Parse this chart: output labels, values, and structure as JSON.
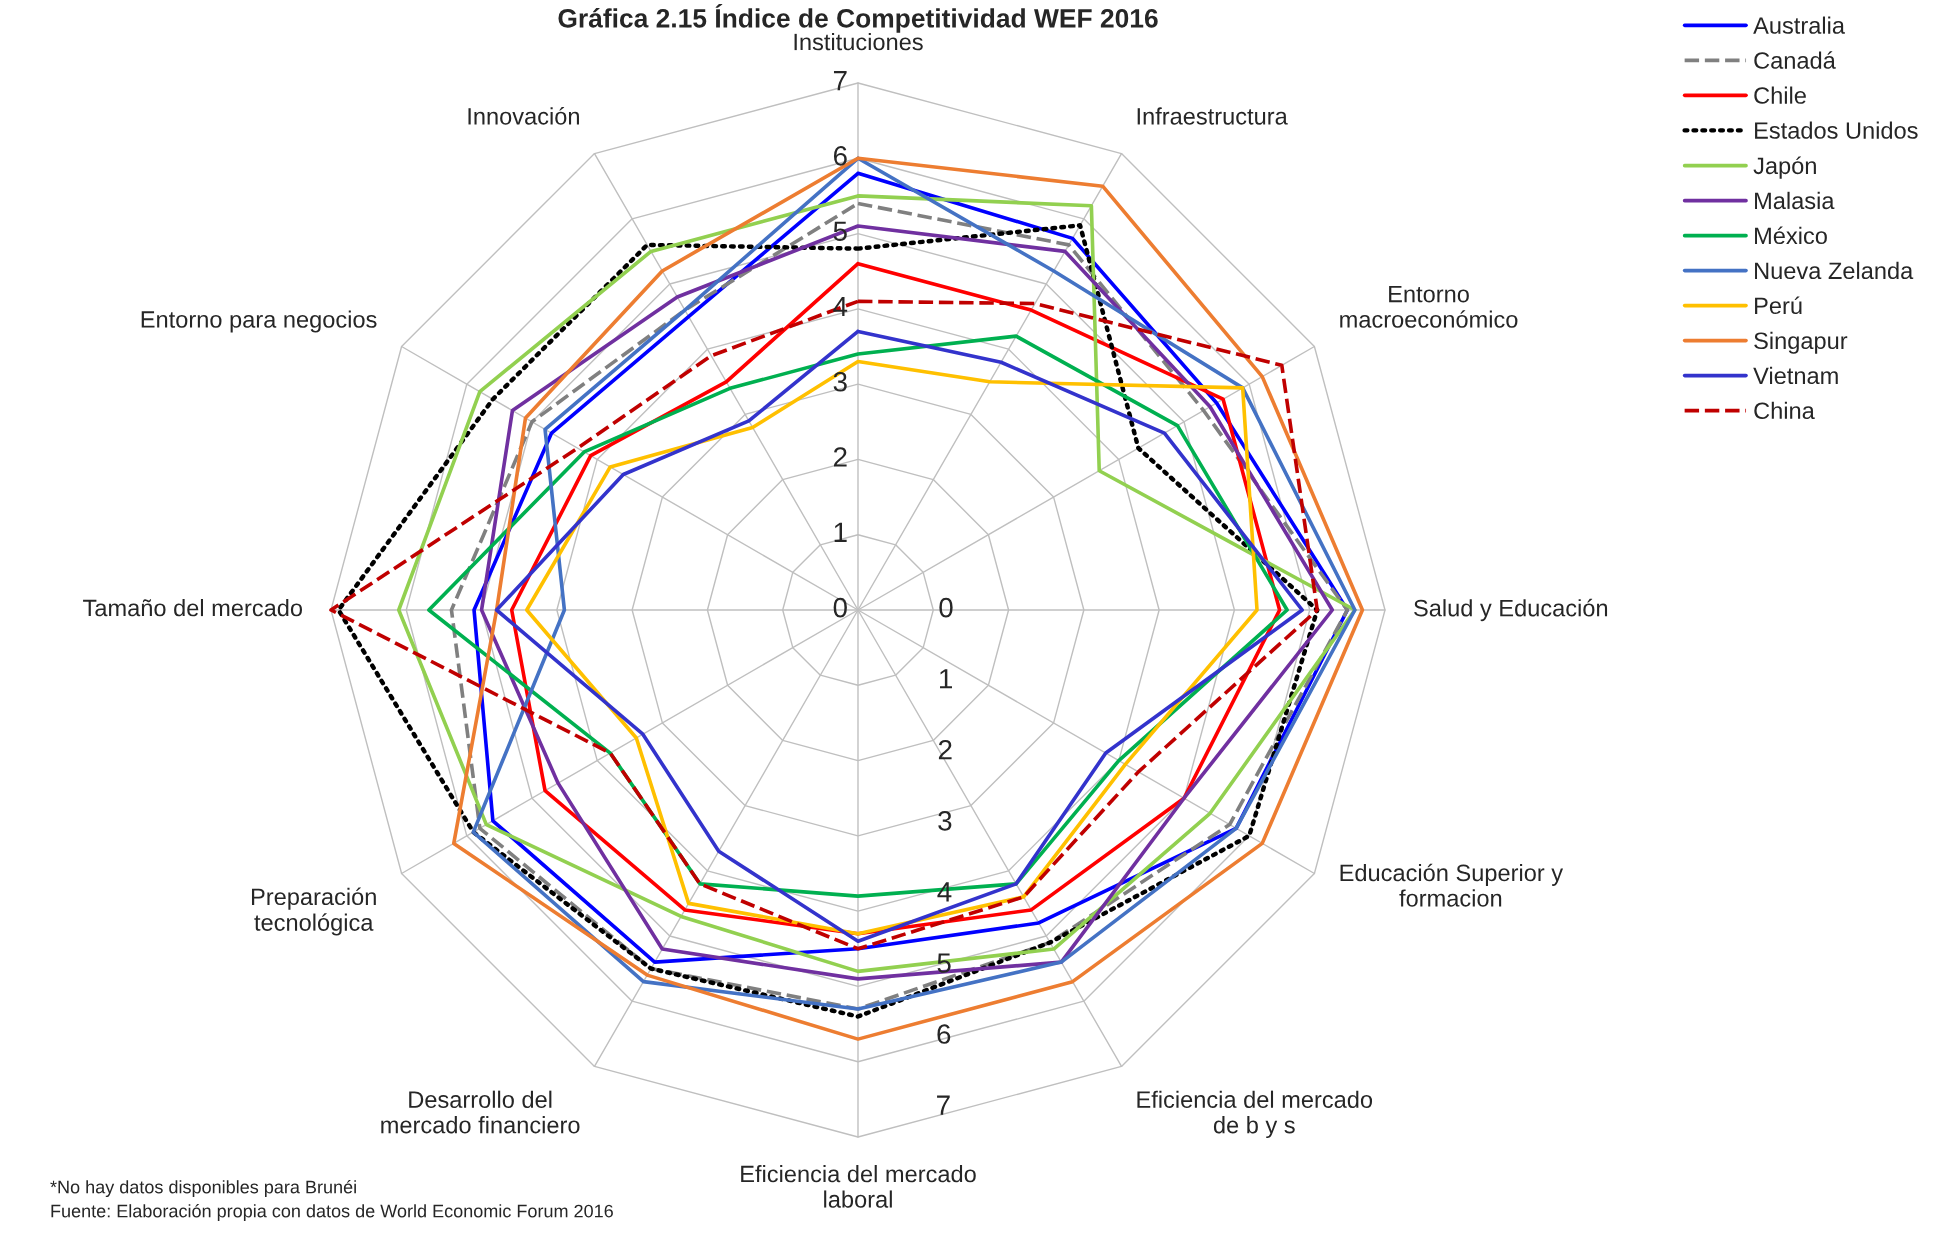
{
  "chart_data": {
    "type": "radar",
    "title": "Gráfica 2.15 Índice de Competitividad WEF 2016",
    "categories": [
      "Instituciones",
      "Infraestructura",
      "Entorno\nmacroeconómico",
      "Salud y Educación",
      "Educación Superior y\nformacion",
      "Eficiencia del mercado\nde b y s",
      "Eficiencia del mercado\nlaboral",
      "Desarrollo del\nmercado financiero",
      "Preparación\ntecnológica",
      "Tamaño del mercado",
      "Entorno para negocios",
      "Innovación"
    ],
    "series": [
      {
        "name": "Australia",
        "color": "#0000ff",
        "line_style": "solid",
        "values": [
          5.8,
          5.7,
          5.5,
          6.5,
          5.8,
          4.8,
          4.5,
          5.4,
          5.6,
          5.1,
          4.7,
          4.5
        ]
      },
      {
        "name": "Canadá",
        "color": "#808080",
        "line_style": "dashed",
        "values": [
          5.4,
          5.6,
          5.3,
          6.5,
          5.7,
          5.1,
          5.3,
          5.5,
          5.8,
          5.4,
          5.0,
          4.6
        ]
      },
      {
        "name": "Chile",
        "color": "#ff0000",
        "line_style": "solid",
        "values": [
          4.6,
          4.6,
          5.6,
          5.6,
          5.0,
          4.6,
          4.3,
          4.6,
          4.8,
          4.6,
          4.1,
          3.5
        ]
      },
      {
        "name": "Estados Unidos",
        "color": "#000000",
        "line_style": "dotted",
        "values": [
          4.8,
          5.9,
          4.3,
          6.1,
          6.0,
          5.1,
          5.4,
          5.5,
          5.9,
          6.9,
          5.6,
          5.6
        ]
      },
      {
        "name": "Japón",
        "color": "#92d050",
        "line_style": "solid",
        "values": [
          5.5,
          6.2,
          3.7,
          6.6,
          5.4,
          5.2,
          4.8,
          4.7,
          5.7,
          6.1,
          5.8,
          5.5
        ]
      },
      {
        "name": "Malasia",
        "color": "#7030a0",
        "line_style": "solid",
        "values": [
          5.1,
          5.5,
          5.4,
          6.3,
          5.0,
          5.4,
          4.9,
          5.2,
          4.6,
          5.0,
          5.3,
          4.8
        ]
      },
      {
        "name": "México",
        "color": "#00b050",
        "line_style": "solid",
        "values": [
          3.4,
          4.2,
          4.9,
          5.7,
          4.0,
          4.2,
          3.8,
          4.2,
          3.8,
          5.7,
          4.2,
          3.4
        ]
      },
      {
        "name": "Nueva Zelanda",
        "color": "#4472c4",
        "line_style": "solid",
        "values": [
          6.0,
          5.2,
          5.9,
          6.6,
          5.8,
          5.4,
          5.3,
          5.7,
          5.9,
          3.9,
          4.8,
          4.6
        ]
      },
      {
        "name": "Perú",
        "color": "#ffc000",
        "line_style": "solid",
        "values": [
          3.3,
          3.5,
          5.9,
          5.3,
          4.1,
          4.4,
          4.3,
          4.5,
          3.4,
          4.4,
          3.8,
          2.8
        ]
      },
      {
        "name": "Singapur",
        "color": "#ed7d31",
        "line_style": "solid",
        "values": [
          6.0,
          6.5,
          6.2,
          6.7,
          6.2,
          5.7,
          5.7,
          5.6,
          6.2,
          4.8,
          5.1,
          5.2
        ]
      },
      {
        "name": "Vietnam",
        "color": "#3333cc",
        "line_style": "solid",
        "values": [
          3.7,
          3.8,
          4.7,
          5.9,
          3.8,
          4.2,
          4.4,
          3.7,
          3.3,
          4.8,
          3.6,
          2.9
        ]
      },
      {
        "name": "China",
        "color": "#c00000",
        "line_style": "dashed",
        "values": [
          4.1,
          4.7,
          6.5,
          6.1,
          4.3,
          4.4,
          4.5,
          4.2,
          3.8,
          7.0,
          4.3,
          3.9
        ]
      }
    ],
    "ylim": [
      0,
      7
    ],
    "yticks": [
      0,
      1,
      2,
      3,
      4,
      5,
      6,
      7
    ],
    "grid": true,
    "legend": "top right",
    "annotations": [
      "0",
      "1",
      "2",
      "3",
      "4",
      "5",
      "6",
      "7",
      "*No hay datos disponibles para Brunéi",
      "Fuente: Elaboración propia con datos de World Economic Forum 2016"
    ]
  }
}
